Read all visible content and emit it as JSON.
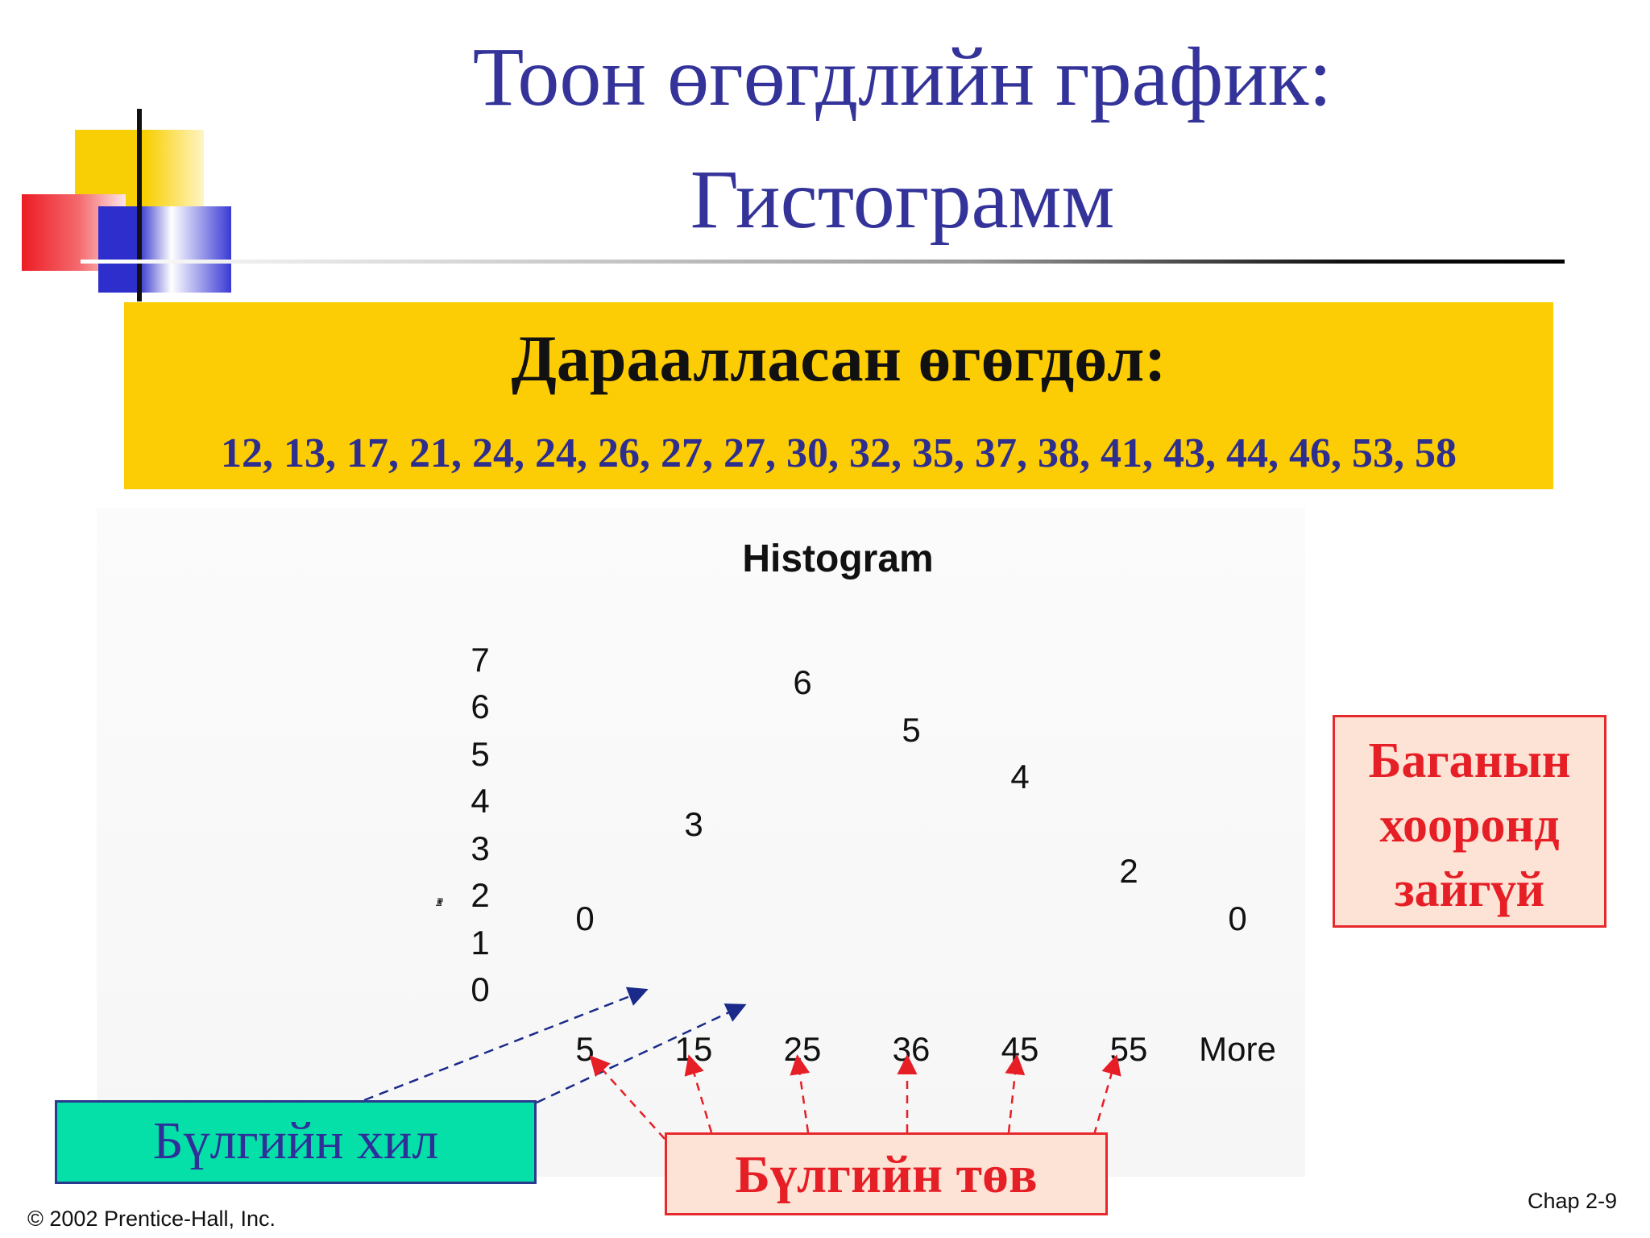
{
  "slide": {
    "title_line1": "Тоон өгөгдлийн график:",
    "title_line2": "Гистограмм",
    "box_heading": "Дараалласан өгөгдөл:",
    "box_values": "12, 13, 17, 21, 24, 24, 26, 27, 27, 30, 32, 35, 37, 38, 41, 43, 44, 46, 53, 58",
    "callout_right": [
      "Баганын",
      "хооронд",
      "зайгүй"
    ],
    "callout_class_width": "Бүлгийн хил",
    "callout_class_mid": "Бүлгийн төв",
    "copyright": "© 2002 Prentice-Hall, Inc.",
    "page_label": "Chap 2-9",
    "colors": {
      "title": "#33339a",
      "box_yellow": "#fccc04",
      "values_text": "#2e2e8e",
      "callout_red": "#e61f26",
      "callout_teal": "#05e0a8",
      "arrow_navy": "#1a2a8a",
      "arrow_red": "#e61f26"
    }
  },
  "chart_data": {
    "type": "bar",
    "title": "Histogram",
    "categories": [
      "5",
      "15",
      "25",
      "36",
      "45",
      "55",
      "More"
    ],
    "values": [
      0,
      3,
      6,
      5,
      4,
      2,
      0
    ],
    "ylim": [
      0,
      7
    ],
    "yticks": [
      "7",
      "6",
      "5",
      "4",
      "3",
      "2",
      "1",
      "0"
    ],
    "ylabel": "",
    "xlabel": "",
    "bars_drawn": false,
    "data_labels": [
      "0",
      "3",
      "6",
      "5",
      "4",
      "2",
      "0"
    ]
  }
}
